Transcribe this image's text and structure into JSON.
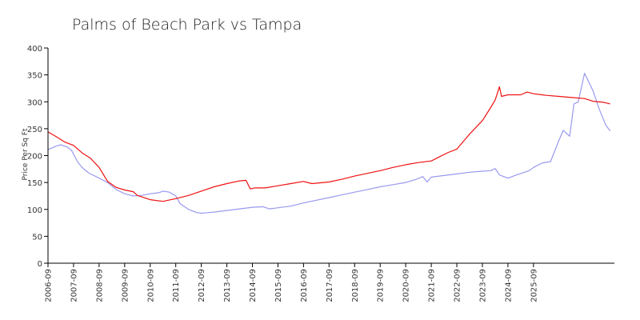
{
  "chart_data": {
    "type": "line",
    "title": "Palms of Beach Park vs Tampa",
    "xlabel": "",
    "ylabel": "Price Per Sq Ft",
    "ylim": [
      0,
      400
    ],
    "yticks": [
      0,
      50,
      100,
      150,
      200,
      250,
      300,
      350,
      400
    ],
    "xticks": [
      "2006-09",
      "2007-09",
      "2008-09",
      "2009-09",
      "2010-09",
      "2011-09",
      "2012-09",
      "2013-09",
      "2014-09",
      "2015-09",
      "2016-09",
      "2017-09",
      "2018-09",
      "2019-09",
      "2020-09",
      "2021-09",
      "2022-09",
      "2023-09",
      "2024-09",
      "2025-09"
    ],
    "grid": false,
    "legend": "none",
    "series": [
      {
        "color": "#ee1111",
        "points": [
          [
            "2006-09",
            244
          ],
          [
            "2007-01",
            235
          ],
          [
            "2007-05",
            225
          ],
          [
            "2007-09",
            219
          ],
          [
            "2008-01",
            205
          ],
          [
            "2008-05",
            195
          ],
          [
            "2008-09",
            178
          ],
          [
            "2009-01",
            152
          ],
          [
            "2009-05",
            141
          ],
          [
            "2009-09",
            136
          ],
          [
            "2010-01",
            133
          ],
          [
            "2010-03",
            126
          ],
          [
            "2010-09",
            118
          ],
          [
            "2011-03",
            115
          ],
          [
            "2011-09",
            120
          ],
          [
            "2012-03",
            126
          ],
          [
            "2012-09",
            134
          ],
          [
            "2013-03",
            142
          ],
          [
            "2013-09",
            148
          ],
          [
            "2014-03",
            153
          ],
          [
            "2014-06",
            154
          ],
          [
            "2014-08",
            138
          ],
          [
            "2014-10",
            140
          ],
          [
            "2015-03",
            140
          ],
          [
            "2015-09",
            144
          ],
          [
            "2016-03",
            148
          ],
          [
            "2016-09",
            152
          ],
          [
            "2017-01",
            148
          ],
          [
            "2017-09",
            151
          ],
          [
            "2018-03",
            156
          ],
          [
            "2018-09",
            162
          ],
          [
            "2019-03",
            167
          ],
          [
            "2019-09",
            172
          ],
          [
            "2020-03",
            178
          ],
          [
            "2020-09",
            183
          ],
          [
            "2021-03",
            187
          ],
          [
            "2021-09",
            190
          ],
          [
            "2022-01",
            198
          ],
          [
            "2022-05",
            206
          ],
          [
            "2022-09",
            212
          ],
          [
            "2023-03",
            240
          ],
          [
            "2023-09",
            265
          ],
          [
            "2024-01",
            290
          ],
          [
            "2024-03",
            303
          ],
          [
            "2024-05",
            328
          ],
          [
            "2024-06",
            310
          ],
          [
            "2024-09",
            313
          ],
          [
            "2025-03",
            313
          ],
          [
            "2025-06",
            318
          ],
          [
            "2025-09",
            315
          ],
          [
            "2026-01",
            313
          ],
          [
            "2026-03",
            312
          ],
          [
            "2026-09",
            310
          ],
          [
            "2027-03",
            308
          ],
          [
            "2027-09",
            306
          ],
          [
            "2028-01",
            301
          ],
          [
            "2028-06",
            299
          ],
          [
            "2028-09",
            296
          ]
        ]
      },
      {
        "color": "#9999ee",
        "points": [
          [
            "2006-09",
            211
          ],
          [
            "2007-01",
            218
          ],
          [
            "2007-03",
            220
          ],
          [
            "2007-06",
            216
          ],
          [
            "2007-08",
            210
          ],
          [
            "2007-11",
            188
          ],
          [
            "2008-01",
            178
          ],
          [
            "2008-04",
            168
          ],
          [
            "2008-09",
            158
          ],
          [
            "2009-01",
            150
          ],
          [
            "2009-05",
            137
          ],
          [
            "2009-09",
            129
          ],
          [
            "2010-01",
            125
          ],
          [
            "2010-05",
            126
          ],
          [
            "2010-09",
            129
          ],
          [
            "2011-01",
            131
          ],
          [
            "2011-03",
            134
          ],
          [
            "2011-06",
            132
          ],
          [
            "2011-09",
            125
          ],
          [
            "2011-11",
            111
          ],
          [
            "2012-03",
            100
          ],
          [
            "2012-07",
            94
          ],
          [
            "2012-09",
            93
          ],
          [
            "2013-03",
            95
          ],
          [
            "2013-09",
            98
          ],
          [
            "2014-03",
            101
          ],
          [
            "2014-09",
            104
          ],
          [
            "2015-02",
            105
          ],
          [
            "2015-05",
            101
          ],
          [
            "2015-09",
            103
          ],
          [
            "2016-03",
            106
          ],
          [
            "2016-09",
            112
          ],
          [
            "2017-03",
            117
          ],
          [
            "2017-09",
            122
          ],
          [
            "2018-03",
            127
          ],
          [
            "2018-09",
            132
          ],
          [
            "2019-03",
            137
          ],
          [
            "2019-09",
            142
          ],
          [
            "2020-03",
            146
          ],
          [
            "2020-09",
            150
          ],
          [
            "2021-02",
            156
          ],
          [
            "2021-05",
            161
          ],
          [
            "2021-07",
            151
          ],
          [
            "2021-09",
            160
          ],
          [
            "2022-03",
            163
          ],
          [
            "2022-09",
            166
          ],
          [
            "2023-03",
            169
          ],
          [
            "2023-09",
            171
          ],
          [
            "2024-01",
            172
          ],
          [
            "2024-03",
            176
          ],
          [
            "2024-05",
            164
          ],
          [
            "2024-09",
            158
          ],
          [
            "2025-01",
            164
          ],
          [
            "2025-07",
            172
          ],
          [
            "2025-09",
            178
          ],
          [
            "2026-01",
            186
          ],
          [
            "2026-05",
            189
          ],
          [
            "2026-09",
            229
          ],
          [
            "2026-11",
            247
          ],
          [
            "2027-02",
            236
          ],
          [
            "2027-04",
            296
          ],
          [
            "2027-06",
            300
          ],
          [
            "2027-09",
            353
          ],
          [
            "2028-01",
            320
          ],
          [
            "2028-04",
            285
          ],
          [
            "2028-07",
            256
          ],
          [
            "2028-09",
            246
          ]
        ]
      }
    ]
  }
}
